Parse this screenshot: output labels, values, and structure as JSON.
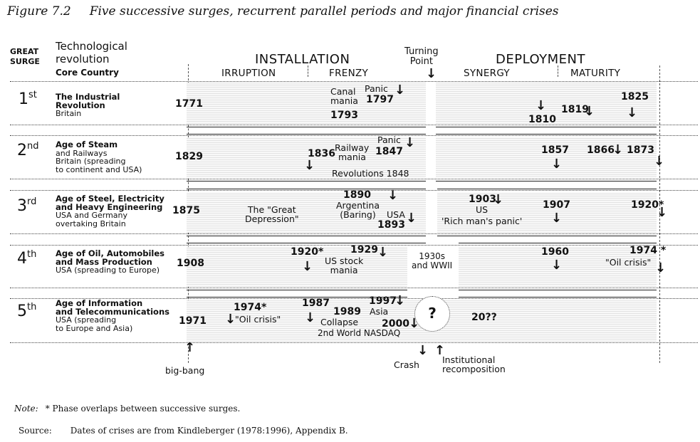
{
  "figure": {
    "label": "Figure 7.2",
    "title": "Five successive surges, recurrent parallel periods and major financial crises"
  },
  "header": {
    "great_surge": [
      "GREAT",
      "SURGE"
    ],
    "tech_line1": "Technological",
    "tech_line2": "revolution",
    "core_country": "Core Country",
    "installation": "INSTALLATION",
    "deployment": "DEPLOYMENT",
    "turning_point": [
      "Turning",
      "Point"
    ],
    "phases": {
      "irruption": "IRRUPTION",
      "frenzy": "FRENZY",
      "synergy": "SYNERGY",
      "maturity": "MATURITY"
    }
  },
  "surges": [
    {
      "ord": "1",
      "suffix": "st",
      "revolution": [
        "The Industrial",
        "Revolution"
      ],
      "country": [
        "Britain"
      ],
      "start": "1771"
    },
    {
      "ord": "2",
      "suffix": "nd",
      "revolution": [
        "Age of Steam"
      ],
      "country": [
        "and Railways",
        "Britain (spreading",
        "to continent and USA)"
      ],
      "start": "1829"
    },
    {
      "ord": "3",
      "suffix": "rd",
      "revolution": [
        "Age of Steel, Electricity",
        "and Heavy Engineering"
      ],
      "country": [
        "USA and Germany",
        "overtaking Britain"
      ],
      "start": "1875"
    },
    {
      "ord": "4",
      "suffix": "th",
      "revolution": [
        "Age of Oil, Automobiles",
        "and Mass Production"
      ],
      "country": [
        "USA (spreading to Europe)"
      ],
      "start": "1908"
    },
    {
      "ord": "5",
      "suffix": "th",
      "revolution": [
        "Age of Information",
        "and Telecommunications"
      ],
      "country": [
        "USA (spreading",
        "to Europe and Asia)"
      ],
      "start": "1971"
    }
  ],
  "events": {
    "s1": {
      "canal": [
        "Canal",
        "mania"
      ],
      "panic": "Panic",
      "y1797": "1797",
      "y1793": "1793",
      "y1810": "1810",
      "y1819": "1819",
      "y1825": "1825"
    },
    "s2": {
      "y1836": "1836",
      "railway": [
        "Railway",
        "mania"
      ],
      "panic": "Panic",
      "y1847": "1847",
      "revolutions": "Revolutions 1848",
      "y1857": "1857",
      "y1866": "1866",
      "y1873": "1873"
    },
    "s3": {
      "great": [
        "The \"Great",
        "Depression\""
      ],
      "y1890": "1890",
      "argentina": [
        "Argentina",
        "(Baring)"
      ],
      "usa": "USA",
      "y1893": "1893",
      "y1903": "1903",
      "us": "US",
      "rich": "'Rich man's panic'",
      "y1907": "1907",
      "y1920": "1920",
      "star": "*"
    },
    "s4": {
      "y1920": "1920*",
      "y1929": "1929",
      "usstock": [
        "US stock",
        "mania"
      ],
      "wwii": [
        "1930s",
        "and WWII"
      ],
      "y1960": "1960",
      "y1974": "1974 *",
      "oil": "\"Oil crisis\""
    },
    "s5": {
      "y1974": "1974*",
      "oil": "\"Oil crisis\"",
      "y1987": "1987",
      "y1989": "1989",
      "y1997": "1997",
      "asia": "Asia",
      "collapse": "Collapse",
      "y2000": "2000",
      "nasdaq": "2nd World NASDAQ",
      "q": "?",
      "future": "20??"
    }
  },
  "bottom": {
    "bigbang": "big-bang",
    "crash": "Crash",
    "institutional": [
      "Institutional",
      "recomposition"
    ]
  },
  "notes": {
    "note_label": "Note:",
    "note_text": "*  Phase overlaps between successive surges.",
    "source_label": "Source:",
    "source_text": "Dates of crises are from Kindleberger (1978:1996), Appendix B."
  }
}
